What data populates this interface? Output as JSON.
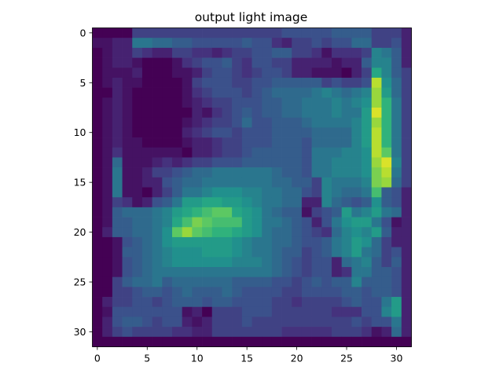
{
  "chart_data": {
    "type": "heatmap",
    "title": "output light image",
    "colormap": "viridis",
    "vmin": 0,
    "vmax": 1,
    "x_ticks": [
      "0",
      "5",
      "10",
      "15",
      "20",
      "25",
      "30"
    ],
    "y_ticks": [
      "0",
      "5",
      "10",
      "15",
      "20",
      "25",
      "30"
    ],
    "xlim": [
      -0.5,
      31.5
    ],
    "ylim": [
      31.5,
      -0.5
    ],
    "grid": false,
    "rows": 32,
    "cols": 32,
    "values": [
      [
        0.0,
        0.0,
        0.0,
        0.0,
        0.2,
        0.2,
        0.2,
        0.2,
        0.2,
        0.2,
        0.2,
        0.2,
        0.2,
        0.2,
        0.2,
        0.2,
        0.2,
        0.2,
        0.2,
        0.25,
        0.25,
        0.25,
        0.25,
        0.25,
        0.3,
        0.3,
        0.3,
        0.3,
        0.2,
        0.2,
        0.2,
        0.1
      ],
      [
        0.05,
        0.05,
        0.1,
        0.1,
        0.4,
        0.4,
        0.35,
        0.35,
        0.3,
        0.3,
        0.25,
        0.25,
        0.25,
        0.25,
        0.25,
        0.3,
        0.25,
        0.25,
        0.15,
        0.1,
        0.2,
        0.2,
        0.25,
        0.2,
        0.25,
        0.25,
        0.35,
        0.35,
        0.2,
        0.2,
        0.25,
        0.1
      ],
      [
        0.0,
        0.05,
        0.1,
        0.1,
        0.2,
        0.15,
        0.1,
        0.1,
        0.2,
        0.2,
        0.15,
        0.15,
        0.1,
        0.15,
        0.2,
        0.2,
        0.25,
        0.25,
        0.3,
        0.3,
        0.2,
        0.2,
        0.15,
        0.05,
        0.15,
        0.15,
        0.15,
        0.2,
        0.45,
        0.4,
        0.3,
        0.1
      ],
      [
        0.0,
        0.05,
        0.1,
        0.1,
        0.05,
        0.0,
        0.0,
        0.0,
        0.05,
        0.15,
        0.2,
        0.25,
        0.25,
        0.3,
        0.2,
        0.15,
        0.25,
        0.25,
        0.2,
        0.2,
        0.1,
        0.1,
        0.1,
        0.1,
        0.05,
        0.1,
        0.1,
        0.3,
        0.45,
        0.45,
        0.3,
        0.1
      ],
      [
        0.0,
        0.05,
        0.05,
        0.05,
        0.1,
        0.0,
        0.0,
        0.0,
        0.05,
        0.05,
        0.1,
        0.2,
        0.25,
        0.25,
        0.2,
        0.15,
        0.2,
        0.25,
        0.25,
        0.2,
        0.1,
        0.1,
        0.05,
        0.05,
        0.05,
        0.0,
        0.1,
        0.2,
        0.6,
        0.45,
        0.3,
        0.2
      ],
      [
        0.0,
        0.05,
        0.1,
        0.05,
        0.05,
        0.0,
        0.0,
        0.0,
        0.0,
        0.05,
        0.2,
        0.25,
        0.25,
        0.25,
        0.2,
        0.2,
        0.25,
        0.25,
        0.3,
        0.3,
        0.3,
        0.3,
        0.3,
        0.2,
        0.25,
        0.2,
        0.2,
        0.25,
        0.9,
        0.5,
        0.35,
        0.2
      ],
      [
        0.0,
        0.0,
        0.1,
        0.05,
        0.0,
        0.0,
        0.0,
        0.0,
        0.0,
        0.05,
        0.15,
        0.2,
        0.25,
        0.25,
        0.25,
        0.2,
        0.25,
        0.3,
        0.35,
        0.35,
        0.35,
        0.35,
        0.4,
        0.45,
        0.4,
        0.35,
        0.4,
        0.45,
        0.85,
        0.55,
        0.35,
        0.2
      ],
      [
        0.0,
        0.05,
        0.1,
        0.05,
        0.0,
        0.0,
        0.0,
        0.0,
        0.0,
        0.05,
        0.1,
        0.15,
        0.2,
        0.2,
        0.25,
        0.25,
        0.25,
        0.3,
        0.3,
        0.35,
        0.35,
        0.4,
        0.4,
        0.4,
        0.45,
        0.4,
        0.45,
        0.5,
        0.85,
        0.65,
        0.4,
        0.2
      ],
      [
        0.0,
        0.05,
        0.1,
        0.05,
        0.0,
        0.0,
        0.0,
        0.0,
        0.0,
        0.0,
        0.1,
        0.05,
        0.15,
        0.2,
        0.25,
        0.3,
        0.25,
        0.3,
        0.3,
        0.35,
        0.35,
        0.4,
        0.4,
        0.4,
        0.45,
        0.4,
        0.4,
        0.55,
        0.95,
        0.65,
        0.4,
        0.2
      ],
      [
        0.0,
        0.05,
        0.1,
        0.05,
        0.0,
        0.0,
        0.0,
        0.0,
        0.0,
        0.05,
        0.1,
        0.15,
        0.2,
        0.2,
        0.25,
        0.35,
        0.25,
        0.25,
        0.3,
        0.3,
        0.3,
        0.35,
        0.4,
        0.4,
        0.4,
        0.4,
        0.45,
        0.55,
        0.85,
        0.65,
        0.4,
        0.2
      ],
      [
        0.0,
        0.05,
        0.1,
        0.05,
        0.0,
        0.0,
        0.0,
        0.0,
        0.0,
        0.1,
        0.15,
        0.2,
        0.25,
        0.25,
        0.2,
        0.25,
        0.25,
        0.25,
        0.3,
        0.3,
        0.3,
        0.3,
        0.35,
        0.35,
        0.35,
        0.35,
        0.45,
        0.55,
        0.9,
        0.65,
        0.4,
        0.2
      ],
      [
        0.0,
        0.05,
        0.1,
        0.05,
        0.05,
        0.0,
        0.0,
        0.0,
        0.0,
        0.05,
        0.1,
        0.1,
        0.15,
        0.2,
        0.2,
        0.25,
        0.25,
        0.25,
        0.3,
        0.3,
        0.3,
        0.25,
        0.35,
        0.35,
        0.35,
        0.35,
        0.45,
        0.55,
        0.9,
        0.65,
        0.4,
        0.2
      ],
      [
        0.0,
        0.05,
        0.15,
        0.05,
        0.05,
        0.05,
        0.05,
        0.05,
        0.05,
        0.0,
        0.1,
        0.1,
        0.15,
        0.2,
        0.2,
        0.25,
        0.3,
        0.3,
        0.3,
        0.3,
        0.3,
        0.25,
        0.4,
        0.4,
        0.4,
        0.45,
        0.45,
        0.5,
        0.9,
        0.75,
        0.4,
        0.2
      ],
      [
        0.0,
        0.05,
        0.35,
        0.05,
        0.05,
        0.05,
        0.1,
        0.15,
        0.1,
        0.15,
        0.2,
        0.2,
        0.25,
        0.25,
        0.25,
        0.3,
        0.3,
        0.3,
        0.3,
        0.3,
        0.3,
        0.25,
        0.4,
        0.4,
        0.45,
        0.45,
        0.45,
        0.5,
        0.85,
        0.95,
        0.45,
        0.2
      ],
      [
        0.0,
        0.05,
        0.4,
        0.05,
        0.05,
        0.1,
        0.2,
        0.2,
        0.25,
        0.3,
        0.35,
        0.35,
        0.4,
        0.4,
        0.4,
        0.4,
        0.4,
        0.4,
        0.35,
        0.3,
        0.3,
        0.25,
        0.4,
        0.4,
        0.45,
        0.45,
        0.45,
        0.5,
        0.8,
        0.9,
        0.4,
        0.2
      ],
      [
        0.0,
        0.05,
        0.4,
        0.05,
        0.05,
        0.1,
        0.1,
        0.25,
        0.3,
        0.35,
        0.35,
        0.4,
        0.4,
        0.4,
        0.4,
        0.4,
        0.4,
        0.4,
        0.35,
        0.35,
        0.3,
        0.3,
        0.2,
        0.45,
        0.4,
        0.4,
        0.4,
        0.45,
        0.8,
        0.85,
        0.35,
        0.2
      ],
      [
        0.0,
        0.05,
        0.4,
        0.05,
        0.05,
        0.0,
        0.1,
        0.2,
        0.3,
        0.4,
        0.4,
        0.45,
        0.5,
        0.5,
        0.5,
        0.45,
        0.45,
        0.4,
        0.4,
        0.35,
        0.35,
        0.25,
        0.2,
        0.45,
        0.4,
        0.35,
        0.35,
        0.4,
        0.7,
        0.3,
        0.25,
        0.1
      ],
      [
        0.0,
        0.05,
        0.2,
        0.15,
        0.05,
        0.1,
        0.25,
        0.3,
        0.4,
        0.55,
        0.55,
        0.6,
        0.6,
        0.55,
        0.55,
        0.5,
        0.45,
        0.4,
        0.4,
        0.35,
        0.35,
        0.1,
        0.1,
        0.45,
        0.35,
        0.3,
        0.25,
        0.3,
        0.5,
        0.3,
        0.25,
        0.1
      ],
      [
        0.0,
        0.05,
        0.3,
        0.35,
        0.35,
        0.35,
        0.4,
        0.45,
        0.55,
        0.6,
        0.65,
        0.7,
        0.75,
        0.75,
        0.6,
        0.55,
        0.5,
        0.4,
        0.35,
        0.3,
        0.3,
        0.05,
        0.2,
        0.25,
        0.3,
        0.55,
        0.4,
        0.45,
        0.55,
        0.4,
        0.35,
        0.1
      ],
      [
        0.0,
        0.05,
        0.3,
        0.3,
        0.35,
        0.35,
        0.4,
        0.45,
        0.6,
        0.7,
        0.8,
        0.75,
        0.7,
        0.7,
        0.7,
        0.55,
        0.5,
        0.4,
        0.4,
        0.35,
        0.3,
        0.25,
        0.1,
        0.25,
        0.4,
        0.5,
        0.55,
        0.55,
        0.4,
        0.25,
        0.05,
        0.1
      ],
      [
        0.0,
        0.1,
        0.3,
        0.3,
        0.35,
        0.35,
        0.4,
        0.5,
        0.75,
        0.85,
        0.75,
        0.7,
        0.65,
        0.65,
        0.6,
        0.55,
        0.5,
        0.4,
        0.35,
        0.35,
        0.3,
        0.25,
        0.2,
        0.15,
        0.35,
        0.45,
        0.5,
        0.45,
        0.55,
        0.3,
        0.1,
        0.1
      ],
      [
        0.0,
        0.0,
        0.05,
        0.25,
        0.3,
        0.35,
        0.4,
        0.5,
        0.55,
        0.55,
        0.55,
        0.55,
        0.55,
        0.55,
        0.5,
        0.45,
        0.4,
        0.4,
        0.35,
        0.35,
        0.3,
        0.25,
        0.25,
        0.3,
        0.4,
        0.45,
        0.55,
        0.5,
        0.35,
        0.2,
        0.1,
        0.1
      ],
      [
        0.0,
        0.0,
        0.05,
        0.3,
        0.3,
        0.35,
        0.4,
        0.45,
        0.5,
        0.5,
        0.5,
        0.55,
        0.55,
        0.55,
        0.5,
        0.45,
        0.4,
        0.4,
        0.35,
        0.3,
        0.3,
        0.2,
        0.25,
        0.3,
        0.4,
        0.45,
        0.55,
        0.4,
        0.35,
        0.2,
        0.25,
        0.1
      ],
      [
        0.0,
        0.0,
        0.05,
        0.25,
        0.3,
        0.35,
        0.4,
        0.45,
        0.5,
        0.5,
        0.5,
        0.5,
        0.5,
        0.5,
        0.45,
        0.45,
        0.45,
        0.4,
        0.35,
        0.3,
        0.25,
        0.2,
        0.25,
        0.25,
        0.1,
        0.35,
        0.4,
        0.45,
        0.3,
        0.2,
        0.3,
        0.1
      ],
      [
        0.0,
        0.0,
        0.05,
        0.25,
        0.3,
        0.35,
        0.4,
        0.4,
        0.4,
        0.4,
        0.4,
        0.4,
        0.4,
        0.4,
        0.4,
        0.4,
        0.4,
        0.4,
        0.35,
        0.3,
        0.25,
        0.2,
        0.25,
        0.25,
        0.1,
        0.15,
        0.4,
        0.4,
        0.3,
        0.3,
        0.25,
        0.1
      ],
      [
        0.0,
        0.0,
        0.2,
        0.3,
        0.35,
        0.35,
        0.4,
        0.3,
        0.35,
        0.35,
        0.35,
        0.35,
        0.35,
        0.35,
        0.3,
        0.3,
        0.3,
        0.3,
        0.25,
        0.25,
        0.2,
        0.25,
        0.3,
        0.25,
        0.3,
        0.3,
        0.45,
        0.3,
        0.3,
        0.3,
        0.25,
        0.1
      ],
      [
        0.0,
        0.0,
        0.2,
        0.2,
        0.25,
        0.3,
        0.3,
        0.25,
        0.3,
        0.35,
        0.3,
        0.3,
        0.3,
        0.35,
        0.3,
        0.25,
        0.25,
        0.25,
        0.25,
        0.2,
        0.2,
        0.25,
        0.25,
        0.25,
        0.25,
        0.3,
        0.3,
        0.25,
        0.3,
        0.3,
        0.25,
        0.1
      ],
      [
        0.0,
        0.1,
        0.2,
        0.2,
        0.25,
        0.25,
        0.2,
        0.25,
        0.3,
        0.3,
        0.3,
        0.25,
        0.3,
        0.3,
        0.25,
        0.25,
        0.25,
        0.25,
        0.2,
        0.2,
        0.15,
        0.2,
        0.2,
        0.2,
        0.2,
        0.25,
        0.3,
        0.25,
        0.25,
        0.4,
        0.55,
        0.1
      ],
      [
        0.0,
        0.05,
        0.25,
        0.25,
        0.25,
        0.25,
        0.25,
        0.25,
        0.25,
        0.05,
        0.1,
        0.0,
        0.2,
        0.2,
        0.2,
        0.25,
        0.25,
        0.25,
        0.2,
        0.2,
        0.2,
        0.2,
        0.2,
        0.2,
        0.15,
        0.15,
        0.15,
        0.25,
        0.25,
        0.45,
        0.55,
        0.1
      ],
      [
        0.0,
        0.1,
        0.25,
        0.3,
        0.3,
        0.25,
        0.2,
        0.25,
        0.25,
        0.1,
        0.05,
        0.1,
        0.2,
        0.2,
        0.2,
        0.25,
        0.2,
        0.2,
        0.2,
        0.2,
        0.2,
        0.2,
        0.2,
        0.2,
        0.2,
        0.2,
        0.25,
        0.2,
        0.25,
        0.25,
        0.4,
        0.1
      ],
      [
        0.0,
        0.1,
        0.2,
        0.25,
        0.2,
        0.2,
        0.2,
        0.2,
        0.15,
        0.15,
        0.1,
        0.1,
        0.2,
        0.2,
        0.2,
        0.2,
        0.2,
        0.2,
        0.2,
        0.15,
        0.15,
        0.15,
        0.15,
        0.15,
        0.2,
        0.2,
        0.2,
        0.15,
        0.05,
        0.1,
        0.35,
        0.1
      ],
      [
        0.0,
        0.0,
        0.0,
        0.0,
        0.0,
        0.0,
        0.0,
        0.0,
        0.0,
        0.0,
        0.0,
        0.0,
        0.0,
        0.0,
        0.0,
        0.0,
        0.0,
        0.0,
        0.0,
        0.0,
        0.0,
        0.0,
        0.0,
        0.0,
        0.0,
        0.0,
        0.0,
        0.0,
        0.0,
        0.0,
        0.0,
        0.0
      ]
    ]
  }
}
